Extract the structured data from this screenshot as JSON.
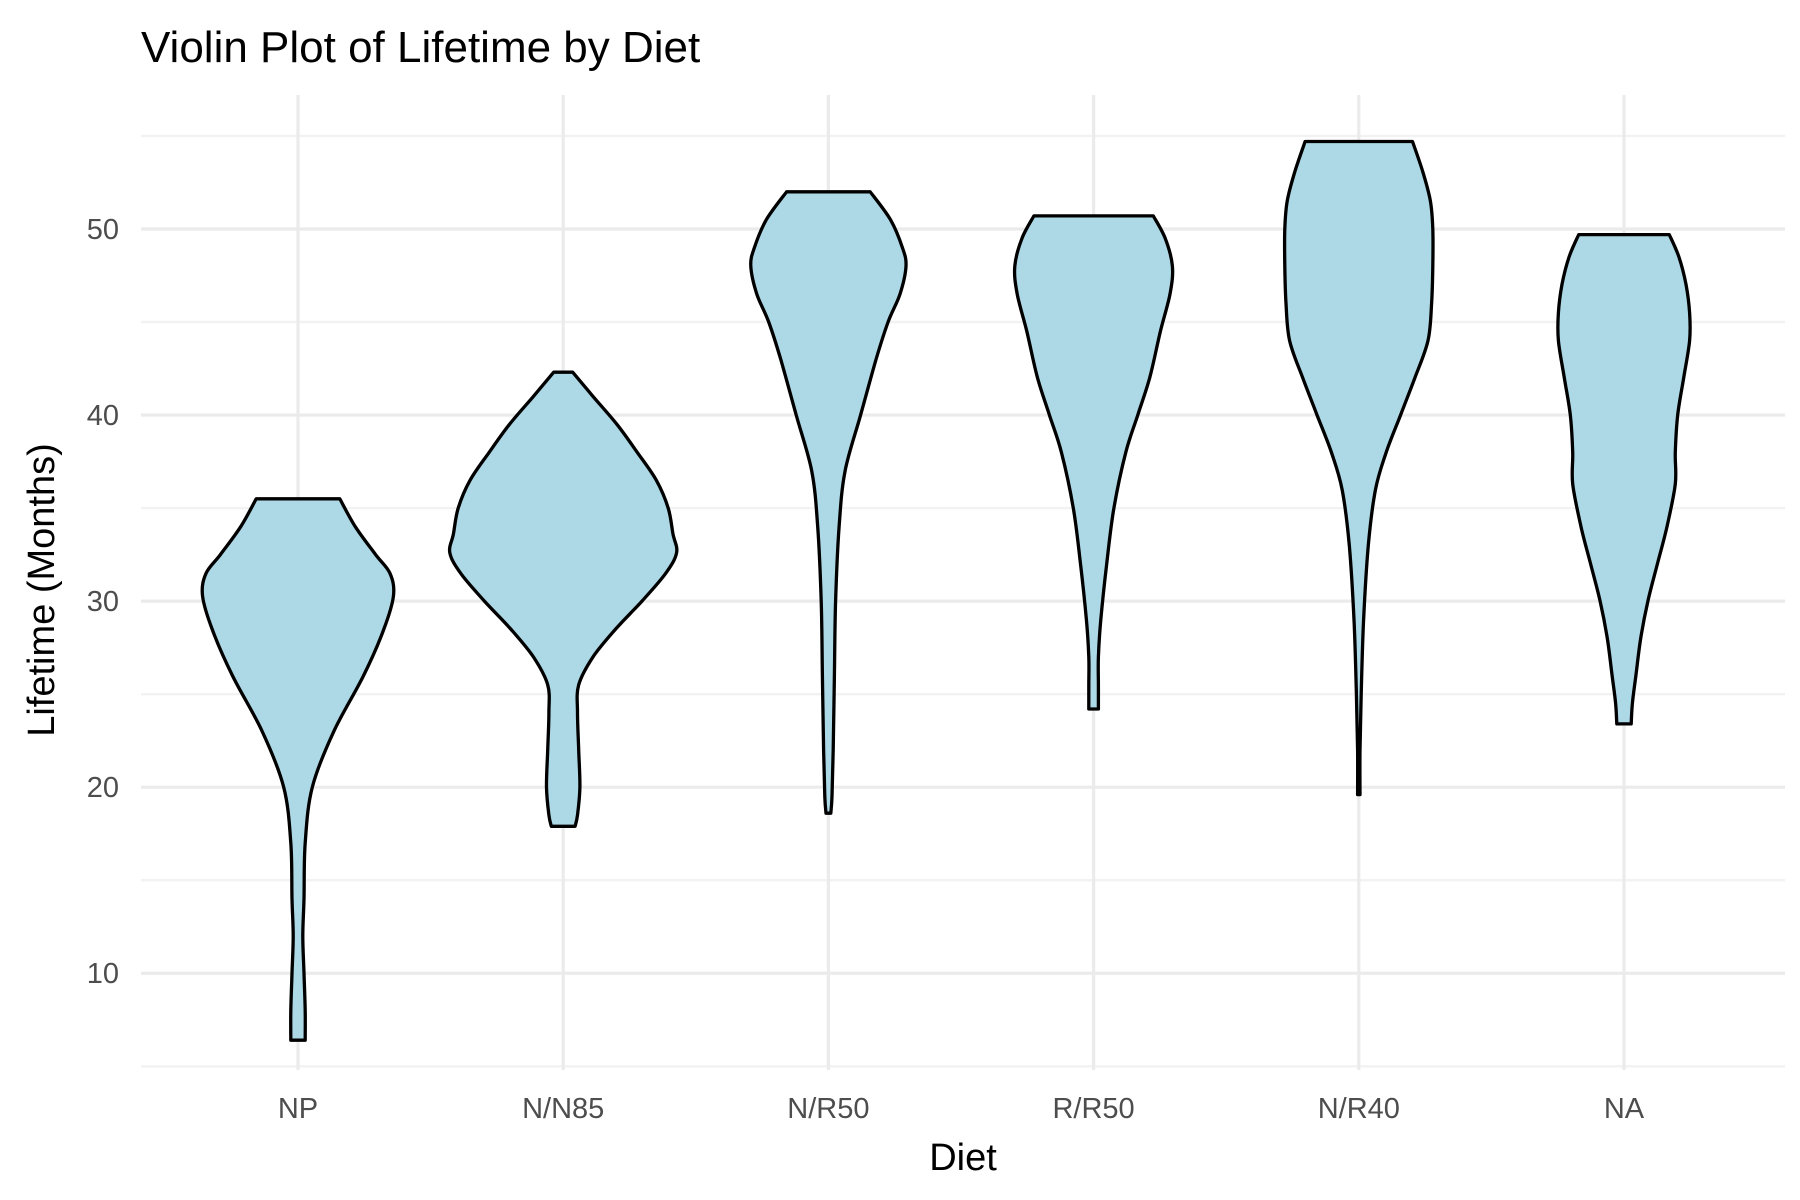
{
  "chart_data": {
    "type": "violin",
    "title": "Violin Plot of Lifetime by Diet",
    "xlabel": "Diet",
    "ylabel": "Lifetime (Months)",
    "categories": [
      "NP",
      "N/N85",
      "N/R50",
      "R/R50",
      "N/R40",
      "NA"
    ],
    "ylim": [
      4.8,
      57.2
    ],
    "y_ticks": [
      10,
      20,
      30,
      40,
      50
    ],
    "y_minor_ticks": [
      5,
      15,
      25,
      35,
      45,
      55
    ],
    "grid": true,
    "legend": "none",
    "colors": {
      "fill": "#add8e6",
      "outline": "#000000"
    },
    "series": [
      {
        "category": "NP",
        "min": 6.4,
        "max": 35.5,
        "density": [
          [
            35.5,
            0.35
          ],
          [
            34.0,
            0.48
          ],
          [
            32.5,
            0.65
          ],
          [
            31.5,
            0.77
          ],
          [
            30.3,
            0.8
          ],
          [
            28.5,
            0.72
          ],
          [
            26.0,
            0.55
          ],
          [
            23.0,
            0.3
          ],
          [
            20.0,
            0.12
          ],
          [
            17.0,
            0.06
          ],
          [
            14.0,
            0.05
          ],
          [
            12.0,
            0.04
          ],
          [
            10.0,
            0.05
          ],
          [
            8.0,
            0.06
          ],
          [
            6.4,
            0.06
          ]
        ]
      },
      {
        "category": "N/N85",
        "min": 17.9,
        "max": 42.3,
        "density": [
          [
            42.3,
            0.08
          ],
          [
            41.0,
            0.25
          ],
          [
            39.5,
            0.45
          ],
          [
            38.0,
            0.62
          ],
          [
            36.5,
            0.78
          ],
          [
            35.0,
            0.88
          ],
          [
            33.6,
            0.92
          ],
          [
            32.6,
            0.95
          ],
          [
            31.5,
            0.86
          ],
          [
            30.0,
            0.66
          ],
          [
            28.5,
            0.44
          ],
          [
            27.0,
            0.25
          ],
          [
            25.5,
            0.13
          ],
          [
            24.0,
            0.12
          ],
          [
            22.0,
            0.13
          ],
          [
            20.0,
            0.14
          ],
          [
            18.5,
            0.12
          ],
          [
            17.9,
            0.1
          ]
        ]
      },
      {
        "category": "N/R50",
        "min": 18.6,
        "max": 52.0,
        "density": [
          [
            52.0,
            0.35
          ],
          [
            50.5,
            0.52
          ],
          [
            49.0,
            0.62
          ],
          [
            48.0,
            0.65
          ],
          [
            46.5,
            0.6
          ],
          [
            45.0,
            0.5
          ],
          [
            43.0,
            0.4
          ],
          [
            40.0,
            0.27
          ],
          [
            37.0,
            0.14
          ],
          [
            34.0,
            0.09
          ],
          [
            30.0,
            0.06
          ],
          [
            26.0,
            0.05
          ],
          [
            22.0,
            0.04
          ],
          [
            19.5,
            0.03
          ],
          [
            18.6,
            0.02
          ]
        ]
      },
      {
        "category": "R/R50",
        "min": 24.2,
        "max": 50.7,
        "density": [
          [
            50.7,
            0.5
          ],
          [
            49.5,
            0.6
          ],
          [
            48.0,
            0.66
          ],
          [
            46.5,
            0.64
          ],
          [
            44.5,
            0.56
          ],
          [
            42.0,
            0.47
          ],
          [
            40.0,
            0.37
          ],
          [
            38.0,
            0.27
          ],
          [
            35.0,
            0.17
          ],
          [
            32.0,
            0.11
          ],
          [
            29.0,
            0.06
          ],
          [
            27.0,
            0.04
          ],
          [
            25.5,
            0.04
          ],
          [
            24.2,
            0.04
          ]
        ]
      },
      {
        "category": "N/R40",
        "min": 19.6,
        "max": 54.7,
        "density": [
          [
            54.7,
            0.45
          ],
          [
            53.0,
            0.54
          ],
          [
            51.5,
            0.6
          ],
          [
            50.0,
            0.62
          ],
          [
            48.0,
            0.62
          ],
          [
            46.0,
            0.61
          ],
          [
            44.0,
            0.58
          ],
          [
            42.0,
            0.47
          ],
          [
            40.0,
            0.35
          ],
          [
            38.0,
            0.23
          ],
          [
            36.0,
            0.14
          ],
          [
            33.0,
            0.08
          ],
          [
            29.0,
            0.04
          ],
          [
            25.0,
            0.02
          ],
          [
            22.0,
            0.01
          ],
          [
            19.6,
            0.01
          ]
        ]
      },
      {
        "category": "NA",
        "min": 23.4,
        "max": 49.7,
        "density": [
          [
            49.7,
            0.38
          ],
          [
            48.5,
            0.46
          ],
          [
            47.0,
            0.52
          ],
          [
            45.5,
            0.55
          ],
          [
            44.0,
            0.55
          ],
          [
            42.0,
            0.5
          ],
          [
            40.0,
            0.45
          ],
          [
            38.0,
            0.43
          ],
          [
            36.3,
            0.43
          ],
          [
            34.0,
            0.36
          ],
          [
            32.0,
            0.28
          ],
          [
            30.0,
            0.2
          ],
          [
            28.0,
            0.14
          ],
          [
            26.0,
            0.1
          ],
          [
            24.5,
            0.07
          ],
          [
            23.4,
            0.06
          ]
        ]
      }
    ]
  }
}
